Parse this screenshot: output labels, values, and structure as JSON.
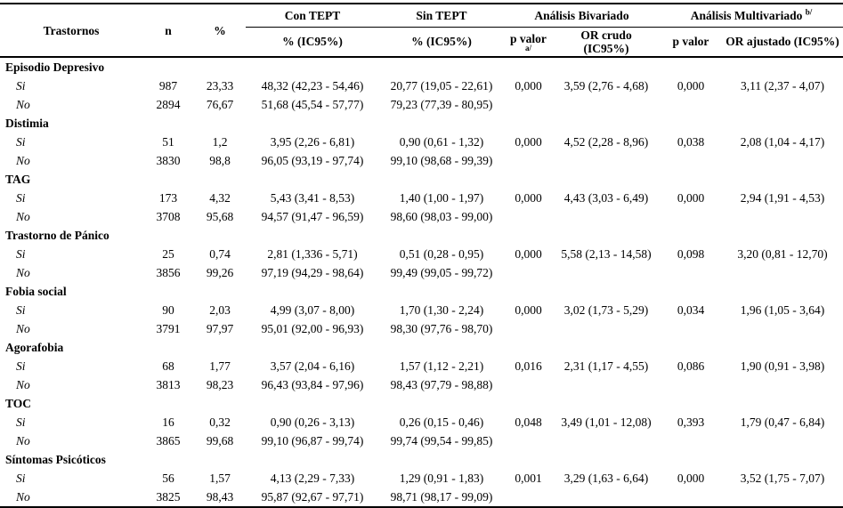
{
  "header": {
    "trastornos": "Trastornos",
    "n": "n",
    "pct": "%",
    "con_tept": "Con TEPT",
    "sin_tept": "Sin TEPT",
    "analisis_bivariado": "Análisis Bivariado",
    "analisis_multivariado": "Análisis Multivariado",
    "multivariado_sup": "b/",
    "con_tept_sub": "% (IC95%)",
    "sin_tept_sub": "% (IC95%)",
    "p_valor_bivariado": "p valor",
    "p_valor_bivariado_sup": "a/",
    "or_crudo_line1": "OR crudo",
    "or_crudo_line2": "(IC95%)",
    "p_valor_multivariado": "p valor",
    "or_ajustado": "OR ajustado (IC95%)"
  },
  "sections": [
    {
      "label": "Episodio Depresivo",
      "rows": [
        {
          "level": "Si",
          "cells": [
            "987",
            "23,33",
            "48,32 (42,23 - 54,46)",
            "20,77 (19,05 - 22,61)",
            "0,000",
            "3,59 (2,76 - 4,68)",
            "0,000",
            "3,11 (2,37 - 4,07)"
          ]
        },
        {
          "level": "No",
          "cells": [
            "2894",
            "76,67",
            "51,68 (45,54 - 57,77)",
            "79,23 (77,39 - 80,95)",
            "",
            "",
            "",
            ""
          ]
        }
      ]
    },
    {
      "label": "Distimia",
      "rows": [
        {
          "level": "Si",
          "cells": [
            "51",
            "1,2",
            "3,95 (2,26 - 6,81)",
            "0,90 (0,61 - 1,32)",
            "0,000",
            "4,52 (2,28 - 8,96)",
            "0,038",
            "2,08 (1,04 - 4,17)"
          ]
        },
        {
          "level": "No",
          "cells": [
            "3830",
            "98,8",
            "96,05 (93,19 - 97,74)",
            "99,10 (98,68 - 99,39)",
            "",
            "",
            "",
            ""
          ]
        }
      ]
    },
    {
      "label": "TAG",
      "rows": [
        {
          "level": "Si",
          "cells": [
            "173",
            "4,32",
            "5,43 (3,41 - 8,53)",
            "1,40 (1,00 - 1,97)",
            "0,000",
            "4,43 (3,03 - 6,49)",
            "0,000",
            "2,94 (1,91 - 4,53)"
          ]
        },
        {
          "level": "No",
          "cells": [
            "3708",
            "95,68",
            "94,57 (91,47 - 96,59)",
            "98,60 (98,03 - 99,00)",
            "",
            "",
            "",
            ""
          ]
        }
      ]
    },
    {
      "label": "Trastorno de Pánico",
      "rows": [
        {
          "level": "Si",
          "cells": [
            "25",
            "0,74",
            "2,81 (1,336 - 5,71)",
            "0,51 (0,28 - 0,95)",
            "0,000",
            "5,58 (2,13 - 14,58)",
            "0,098",
            "3,20 (0,81 - 12,70)"
          ]
        },
        {
          "level": "No",
          "cells": [
            "3856",
            "99,26",
            "97,19 (94,29 - 98,64)",
            "99,49 (99,05 - 99,72)",
            "",
            "",
            "",
            ""
          ]
        }
      ]
    },
    {
      "label": "Fobia social",
      "rows": [
        {
          "level": "Si",
          "cells": [
            "90",
            "2,03",
            "4,99 (3,07 - 8,00)",
            "1,70 (1,30 - 2,24)",
            "0,000",
            "3,02 (1,73 - 5,29)",
            "0,034",
            "1,96 (1,05 - 3,64)"
          ]
        },
        {
          "level": "No",
          "cells": [
            "3791",
            "97,97",
            "95,01 (92,00 - 96,93)",
            "98,30 (97,76 - 98,70)",
            "",
            "",
            "",
            ""
          ]
        }
      ]
    },
    {
      "label": "Agorafobia",
      "rows": [
        {
          "level": "Si",
          "cells": [
            "68",
            "1,77",
            "3,57 (2,04 - 6,16)",
            "1,57 (1,12 - 2,21)",
            "0,016",
            "2,31 (1,17 - 4,55)",
            "0,086",
            "1,90 (0,91 - 3,98)"
          ]
        },
        {
          "level": "No",
          "cells": [
            "3813",
            "98,23",
            "96,43 (93,84 - 97,96)",
            "98,43 (97,79 - 98,88)",
            "",
            "",
            "",
            ""
          ]
        }
      ]
    },
    {
      "label": "TOC",
      "rows": [
        {
          "level": "Si",
          "cells": [
            "16",
            "0,32",
            "0,90 (0,26 - 3,13)",
            "0,26 (0,15 - 0,46)",
            "0,048",
            "3,49 (1,01 - 12,08)",
            "0,393",
            "1,79 (0,47 - 6,84)"
          ]
        },
        {
          "level": "No",
          "cells": [
            "3865",
            "99,68",
            "99,10 (96,87 - 99,74)",
            "99,74 (99,54 - 99,85)",
            "",
            "",
            "",
            ""
          ]
        }
      ]
    },
    {
      "label": "Síntomas Psicóticos",
      "rows": [
        {
          "level": "Si",
          "cells": [
            "56",
            "1,57",
            "4,13 (2,29 - 7,33)",
            "1,29 (0,91 - 1,83)",
            "0,001",
            "3,29 (1,63 - 6,64)",
            "0,000",
            "3,52 (1,75 - 7,07)"
          ]
        },
        {
          "level": "No",
          "cells": [
            "3825",
            "98,43",
            "95,87 (92,67 - 97,71)",
            "98,71 (98,17 - 99,09)",
            "",
            "",
            "",
            ""
          ]
        }
      ]
    }
  ]
}
